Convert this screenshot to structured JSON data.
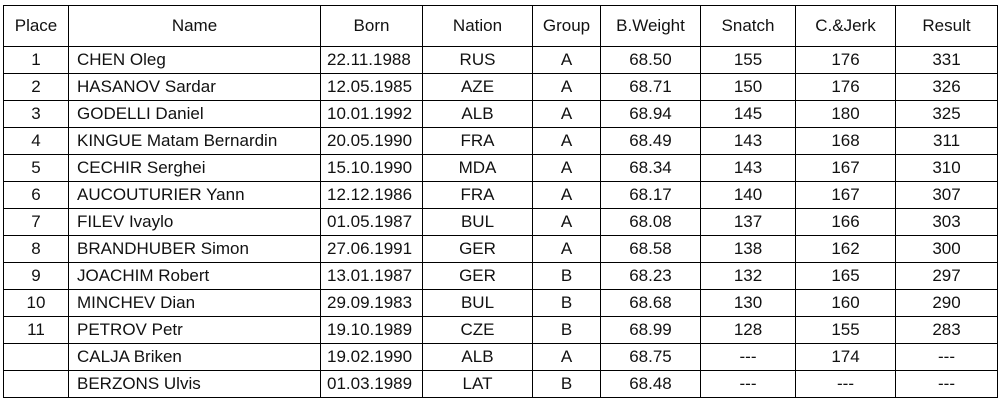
{
  "table": {
    "header": [
      "Place",
      "Name",
      "Born",
      "Nation",
      "Group",
      "B.Weight",
      "Snatch",
      "C.&Jerk",
      "Result"
    ],
    "rows": [
      [
        "1",
        "CHEN Oleg",
        "22.11.1988",
        "RUS",
        "A",
        "68.50",
        "155",
        "176",
        "331"
      ],
      [
        "2",
        "HASANOV Sardar",
        "12.05.1985",
        "AZE",
        "A",
        "68.71",
        "150",
        "176",
        "326"
      ],
      [
        "3",
        "GODELLI Daniel",
        "10.01.1992",
        "ALB",
        "A",
        "68.94",
        "145",
        "180",
        "325"
      ],
      [
        "4",
        "KINGUE Matam Bernardin",
        "20.05.1990",
        "FRA",
        "A",
        "68.49",
        "143",
        "168",
        "311"
      ],
      [
        "5",
        "CECHIR Serghei",
        "15.10.1990",
        "MDA",
        "A",
        "68.34",
        "143",
        "167",
        "310"
      ],
      [
        "6",
        "AUCOUTURIER Yann",
        "12.12.1986",
        "FRA",
        "A",
        "68.17",
        "140",
        "167",
        "307"
      ],
      [
        "7",
        "FILEV Ivaylo",
        "01.05.1987",
        "BUL",
        "A",
        "68.08",
        "137",
        "166",
        "303"
      ],
      [
        "8",
        "BRANDHUBER Simon",
        "27.06.1991",
        "GER",
        "A",
        "68.58",
        "138",
        "162",
        "300"
      ],
      [
        "9",
        "JOACHIM Robert",
        "13.01.1987",
        "GER",
        "B",
        "68.23",
        "132",
        "165",
        "297"
      ],
      [
        "10",
        "MINCHEV Dian",
        "29.09.1983",
        "BUL",
        "B",
        "68.68",
        "130",
        "160",
        "290"
      ],
      [
        "11",
        "PETROV Petr",
        "19.10.1989",
        "CZE",
        "B",
        "68.99",
        "128",
        "155",
        "283"
      ],
      [
        null,
        "CALJA Briken",
        "19.02.1990",
        "ALB",
        "A",
        "68.75",
        "---",
        "174",
        "---"
      ],
      [
        null,
        "BERZONS Ulvis",
        "01.03.1989",
        "LAT",
        "B",
        "68.48",
        "---",
        "---",
        "---"
      ]
    ]
  }
}
